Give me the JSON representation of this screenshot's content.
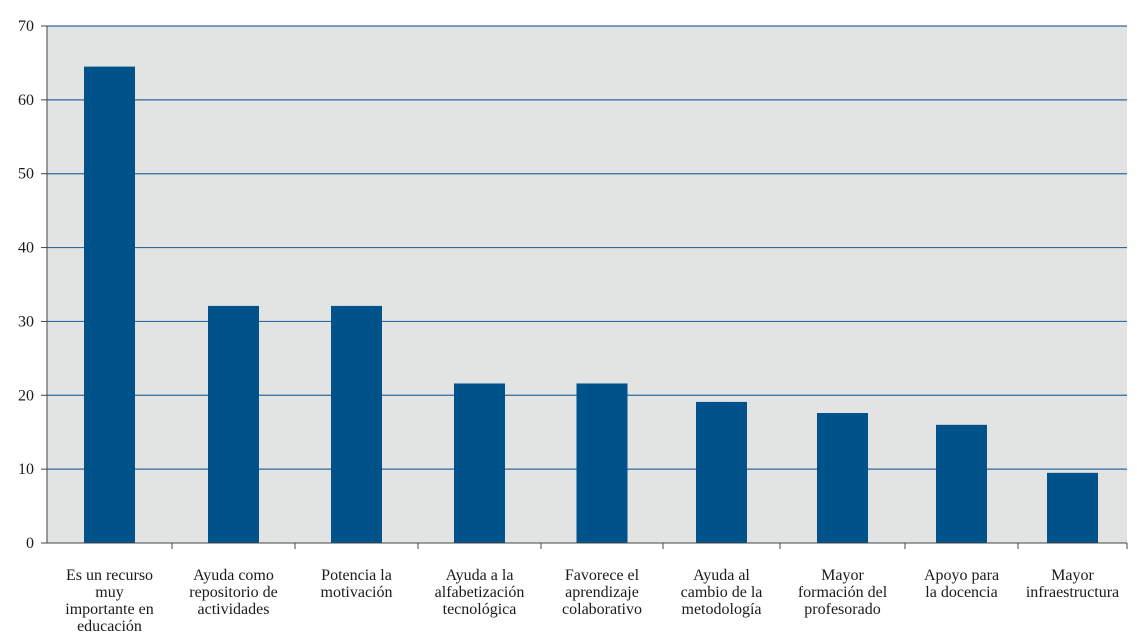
{
  "chart_data": {
    "type": "bar",
    "title": "",
    "xlabel": "",
    "ylabel": "",
    "ylim": [
      0,
      70
    ],
    "yticks": [
      0,
      10,
      20,
      30,
      40,
      50,
      60,
      70
    ],
    "grid": true,
    "legend": "none",
    "categories": [
      [
        "Es un recurso",
        "muy",
        "importante en",
        "educación"
      ],
      [
        "Ayuda como",
        "repositorio de",
        "actividades"
      ],
      [
        "Potencia la",
        "motivación"
      ],
      [
        "Ayuda a la",
        "alfabetización",
        "tecnológica"
      ],
      [
        "Favorece el",
        "aprendizaje",
        "colaborativo"
      ],
      [
        "Ayuda al",
        "cambio de la",
        "metodología"
      ],
      [
        "Mayor",
        "formación del",
        "profesorado"
      ],
      [
        "Apoyo para",
        "la docencia"
      ],
      [
        "Mayor",
        "infraestructura"
      ]
    ],
    "values": [
      64.5,
      32.1,
      32.1,
      21.6,
      21.6,
      19.1,
      17.6,
      16.0,
      9.5
    ],
    "colors": {
      "bar": "#00528a",
      "plot_background": "#e2e3e3",
      "grid": "#2f6aa0",
      "axis": "#444444"
    }
  }
}
